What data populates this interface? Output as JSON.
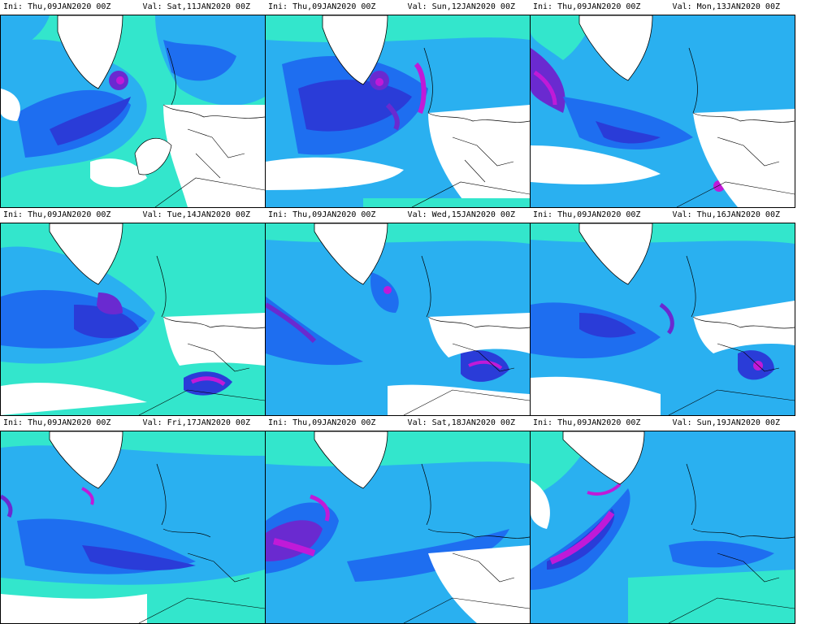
{
  "panels": [
    {
      "ini": "Ini: Thu,09JAN2020 00Z",
      "val": "Val: Sat,11JAN2020 00Z"
    },
    {
      "ini": "Ini: Thu,09JAN2020 00Z",
      "val": "Val: Sun,12JAN2020 00Z"
    },
    {
      "ini": "Ini: Thu,09JAN2020 00Z",
      "val": "Val: Mon,13JAN2020 00Z"
    },
    {
      "ini": "Ini: Thu,09JAN2020 00Z",
      "val": "Val: Tue,14JAN2020 00Z"
    },
    {
      "ini": "Ini: Thu,09JAN2020 00Z",
      "val": "Val: Wed,15JAN2020 00Z"
    },
    {
      "ini": "Ini: Thu,09JAN2020 00Z",
      "val": "Val: Thu,16JAN2020 00Z"
    },
    {
      "ini": "Ini: Thu,09JAN2020 00Z",
      "val": "Val: Fri,17JAN2020 00Z"
    },
    {
      "ini": "Ini: Thu,09JAN2020 00Z",
      "val": "Val: Sat,18JAN2020 00Z"
    },
    {
      "ini": "Ini: Thu,09JAN2020 00Z",
      "val": "Val: Sun,19JAN2020 00Z"
    }
  ],
  "colors": {
    "land": "#ffffff",
    "level1": "#33e6cc",
    "level2": "#2ab0f0",
    "level3": "#1e6ef0",
    "level4": "#2a3cd8",
    "level5": "#6a2ad0",
    "level6": "#c01ad8",
    "coast": "#000000"
  }
}
